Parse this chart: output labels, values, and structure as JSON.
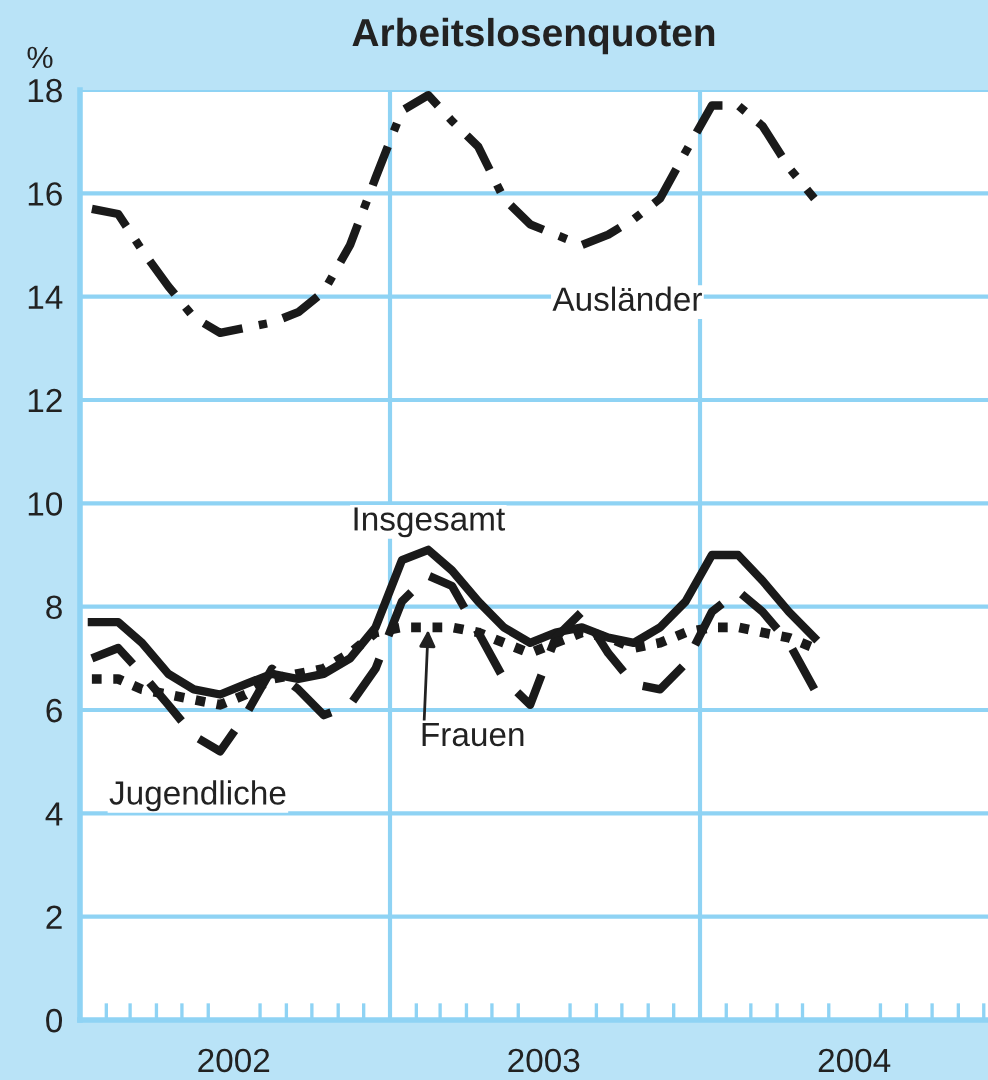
{
  "chart_data": {
    "type": "line",
    "title": "Arbeitslosenquoten",
    "ylabel": "%",
    "x": [
      "2002-01-15",
      "2002-02-15",
      "2002-03-15",
      "2002-04-15",
      "2002-05-15",
      "2002-06-15",
      "2002-07-15",
      "2002-08-15",
      "2002-09-15",
      "2002-10-15",
      "2002-11-15",
      "2002-12-15",
      "2003-01-15",
      "2003-02-15",
      "2003-03-15",
      "2003-04-15",
      "2003-05-15",
      "2003-06-15",
      "2003-07-15",
      "2003-08-15",
      "2003-09-15",
      "2003-10-15",
      "2003-11-15",
      "2003-12-15",
      "2004-01-15",
      "2004-02-15",
      "2004-03-15",
      "2004-04-15",
      "2004-05-15"
    ],
    "series": [
      {
        "name": "Ausländer",
        "color": "#1a1a1a",
        "line_style": "dashdot",
        "values": [
          15.7,
          15.6,
          14.9,
          14.2,
          13.6,
          13.3,
          13.4,
          13.5,
          13.7,
          14.1,
          15.0,
          16.3,
          17.6,
          17.9,
          17.4,
          16.9,
          15.9,
          15.4,
          15.2,
          15.0,
          15.2,
          15.5,
          15.9,
          16.8,
          17.7,
          17.7,
          17.3,
          16.5,
          15.9
        ]
      },
      {
        "name": "Insgesamt",
        "color": "#1a1a1a",
        "line_style": "solid",
        "values": [
          7.7,
          7.7,
          7.3,
          6.7,
          6.4,
          6.3,
          6.5,
          6.7,
          6.6,
          6.7,
          7.0,
          7.6,
          8.9,
          9.1,
          8.7,
          8.1,
          7.6,
          7.3,
          7.5,
          7.6,
          7.4,
          7.3,
          7.6,
          8.1,
          9.0,
          9.0,
          8.5,
          7.9,
          7.4
        ]
      },
      {
        "name": "Jugendliche",
        "color": "#1a1a1a",
        "line_style": "dashed",
        "values": [
          7.0,
          7.2,
          6.7,
          6.1,
          5.5,
          5.2,
          5.9,
          6.8,
          6.4,
          5.9,
          6.1,
          6.8,
          8.1,
          8.6,
          8.4,
          7.5,
          6.6,
          6.1,
          7.4,
          7.9,
          7.1,
          6.5,
          6.4,
          6.9,
          7.9,
          8.3,
          7.9,
          7.3,
          6.4
        ]
      },
      {
        "name": "Frauen",
        "color": "#1a1a1a",
        "line_style": "dotted",
        "values": [
          6.6,
          6.6,
          6.4,
          6.3,
          6.2,
          6.1,
          6.3,
          6.6,
          6.7,
          6.8,
          7.1,
          7.5,
          7.6,
          7.6,
          7.6,
          7.5,
          7.3,
          7.1,
          7.3,
          7.5,
          7.4,
          7.2,
          7.3,
          7.5,
          7.6,
          7.6,
          7.5,
          7.4,
          7.2
        ]
      }
    ],
    "ylim": [
      0,
      18
    ],
    "yticks": [
      0,
      2,
      4,
      6,
      8,
      10,
      12,
      14,
      16,
      18
    ],
    "xlim": [
      "2002-01-01",
      "2004-12-06"
    ],
    "xticks": [
      {
        "value": "2002-07-01",
        "label": "2002"
      },
      {
        "value": "2003-07-01",
        "label": "2003"
      },
      {
        "value": "2004-07-01",
        "label": "2004"
      },
      {
        "value": "2002-02-01",
        "label": null
      },
      {
        "value": "2002-03-01",
        "label": null
      },
      {
        "value": "2002-04-01",
        "label": null
      },
      {
        "value": "2002-05-01",
        "label": null
      },
      {
        "value": "2002-06-01",
        "label": null
      },
      {
        "value": "2002-08-01",
        "label": null
      },
      {
        "value": "2002-09-01",
        "label": null
      },
      {
        "value": "2002-10-01",
        "label": null
      },
      {
        "value": "2002-11-01",
        "label": null
      },
      {
        "value": "2002-12-01",
        "label": null
      },
      {
        "value": "2003-02-01",
        "label": null
      },
      {
        "value": "2003-03-01",
        "label": null
      },
      {
        "value": "2003-04-01",
        "label": null
      },
      {
        "value": "2003-05-01",
        "label": null
      },
      {
        "value": "2003-06-01",
        "label": null
      },
      {
        "value": "2003-08-01",
        "label": null
      },
      {
        "value": "2003-09-01",
        "label": null
      },
      {
        "value": "2003-10-01",
        "label": null
      },
      {
        "value": "2003-11-01",
        "label": null
      },
      {
        "value": "2003-12-01",
        "label": null
      },
      {
        "value": "2004-02-01",
        "label": null
      },
      {
        "value": "2004-03-01",
        "label": null
      },
      {
        "value": "2004-04-01",
        "label": null
      },
      {
        "value": "2004-05-01",
        "label": null
      },
      {
        "value": "2004-06-01",
        "label": null
      },
      {
        "value": "2004-08-01",
        "label": null
      },
      {
        "value": "2004-09-01",
        "label": null
      },
      {
        "value": "2004-10-01",
        "label": null
      },
      {
        "value": "2004-11-01",
        "label": null
      },
      {
        "value": "2004-12-01",
        "label": null
      }
    ],
    "ref_lines": [
      {
        "axis": "x",
        "value": "2003-01-01",
        "label": null,
        "color": "#8fd3f4"
      },
      {
        "axis": "x",
        "value": "2004-01-01",
        "label": null,
        "color": "#8fd3f4"
      }
    ],
    "grid": "y",
    "legend": false,
    "marker": "none"
  }
}
